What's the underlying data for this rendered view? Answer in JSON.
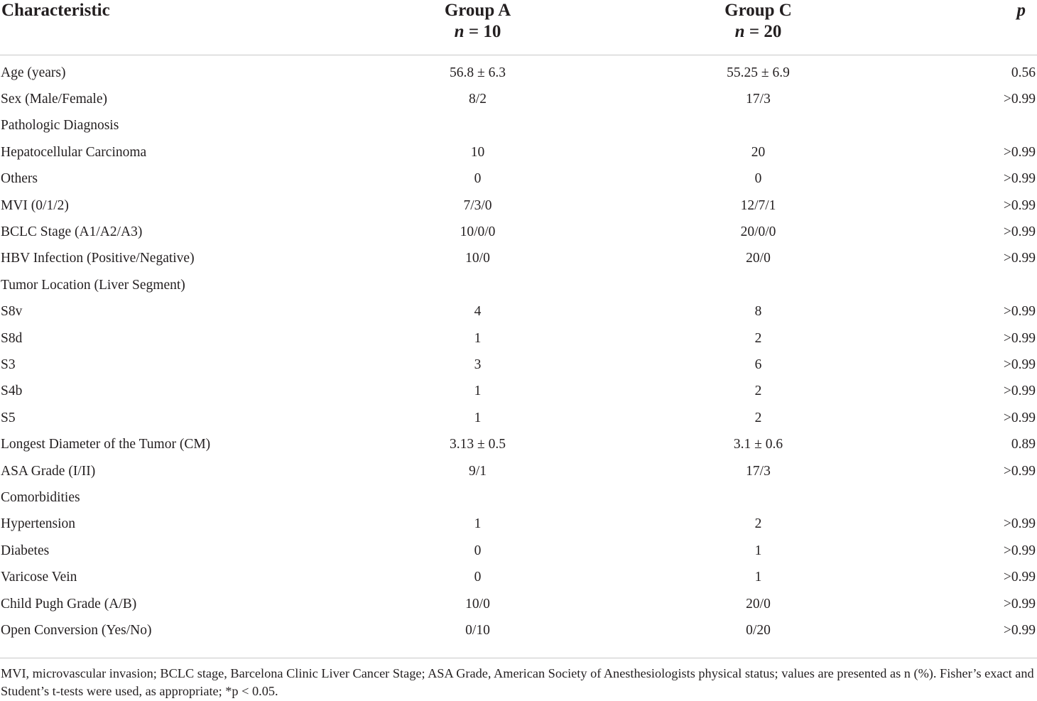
{
  "header": {
    "characteristic": "Characteristic",
    "group_a": {
      "name": "Group A",
      "n_label": "n",
      "n_value": "= 10"
    },
    "group_c": {
      "name": "Group C",
      "n_label": "n",
      "n_value": "= 20"
    },
    "p": "p"
  },
  "rows": [
    {
      "label": "Age (years)",
      "a": "56.8 ± 6.3",
      "c": "55.25 ± 6.9",
      "p": "0.56"
    },
    {
      "label": "Sex (Male/Female)",
      "a": "8/2",
      "c": "17/3",
      "p": ">0.99"
    },
    {
      "label": "Pathologic Diagnosis",
      "a": "",
      "c": "",
      "p": ""
    },
    {
      "label": "Hepatocellular Carcinoma",
      "a": "10",
      "c": "20",
      "p": ">0.99"
    },
    {
      "label": "Others",
      "a": "0",
      "c": "0",
      "p": ">0.99"
    },
    {
      "label": "MVI (0/1/2)",
      "a": "7/3/0",
      "c": "12/7/1",
      "p": ">0.99"
    },
    {
      "label": "BCLC Stage (A1/A2/A3)",
      "a": "10/0/0",
      "c": "20/0/0",
      "p": ">0.99"
    },
    {
      "label": "HBV Infection (Positive/Negative)",
      "a": "10/0",
      "c": "20/0",
      "p": ">0.99"
    },
    {
      "label": "Tumor Location (Liver Segment)",
      "a": "",
      "c": "",
      "p": ""
    },
    {
      "label": "S8v",
      "a": "4",
      "c": "8",
      "p": ">0.99"
    },
    {
      "label": "S8d",
      "a": "1",
      "c": "2",
      "p": ">0.99"
    },
    {
      "label": "S3",
      "a": "3",
      "c": "6",
      "p": ">0.99"
    },
    {
      "label": "S4b",
      "a": "1",
      "c": "2",
      "p": ">0.99"
    },
    {
      "label": "S5",
      "a": "1",
      "c": "2",
      "p": ">0.99"
    },
    {
      "label": "Longest Diameter of the Tumor (CM)",
      "a": "3.13 ± 0.5",
      "c": "3.1 ± 0.6",
      "p": "0.89"
    },
    {
      "label": "ASA Grade (I/II)",
      "a": "9/1",
      "c": "17/3",
      "p": ">0.99"
    },
    {
      "label": "Comorbidities",
      "a": "",
      "c": "",
      "p": ""
    },
    {
      "label": "Hypertension",
      "a": "1",
      "c": "2",
      "p": ">0.99"
    },
    {
      "label": "Diabetes",
      "a": "0",
      "c": "1",
      "p": ">0.99"
    },
    {
      "label": "Varicose Vein",
      "a": "0",
      "c": "1",
      "p": ">0.99"
    },
    {
      "label": "Child Pugh Grade (A/B)",
      "a": "10/0",
      "c": "20/0",
      "p": ">0.99"
    },
    {
      "label": "Open Conversion (Yes/No)",
      "a": "0/10",
      "c": "0/20",
      "p": ">0.99"
    }
  ],
  "footnote": "MVI, microvascular invasion; BCLC stage, Barcelona Clinic Liver Cancer Stage; ASA Grade, American Society of Anesthesiologists physical status; values are presented as n (%). Fisher’s exact and Student’s t-tests were used, as appropriate; *p < 0.05."
}
